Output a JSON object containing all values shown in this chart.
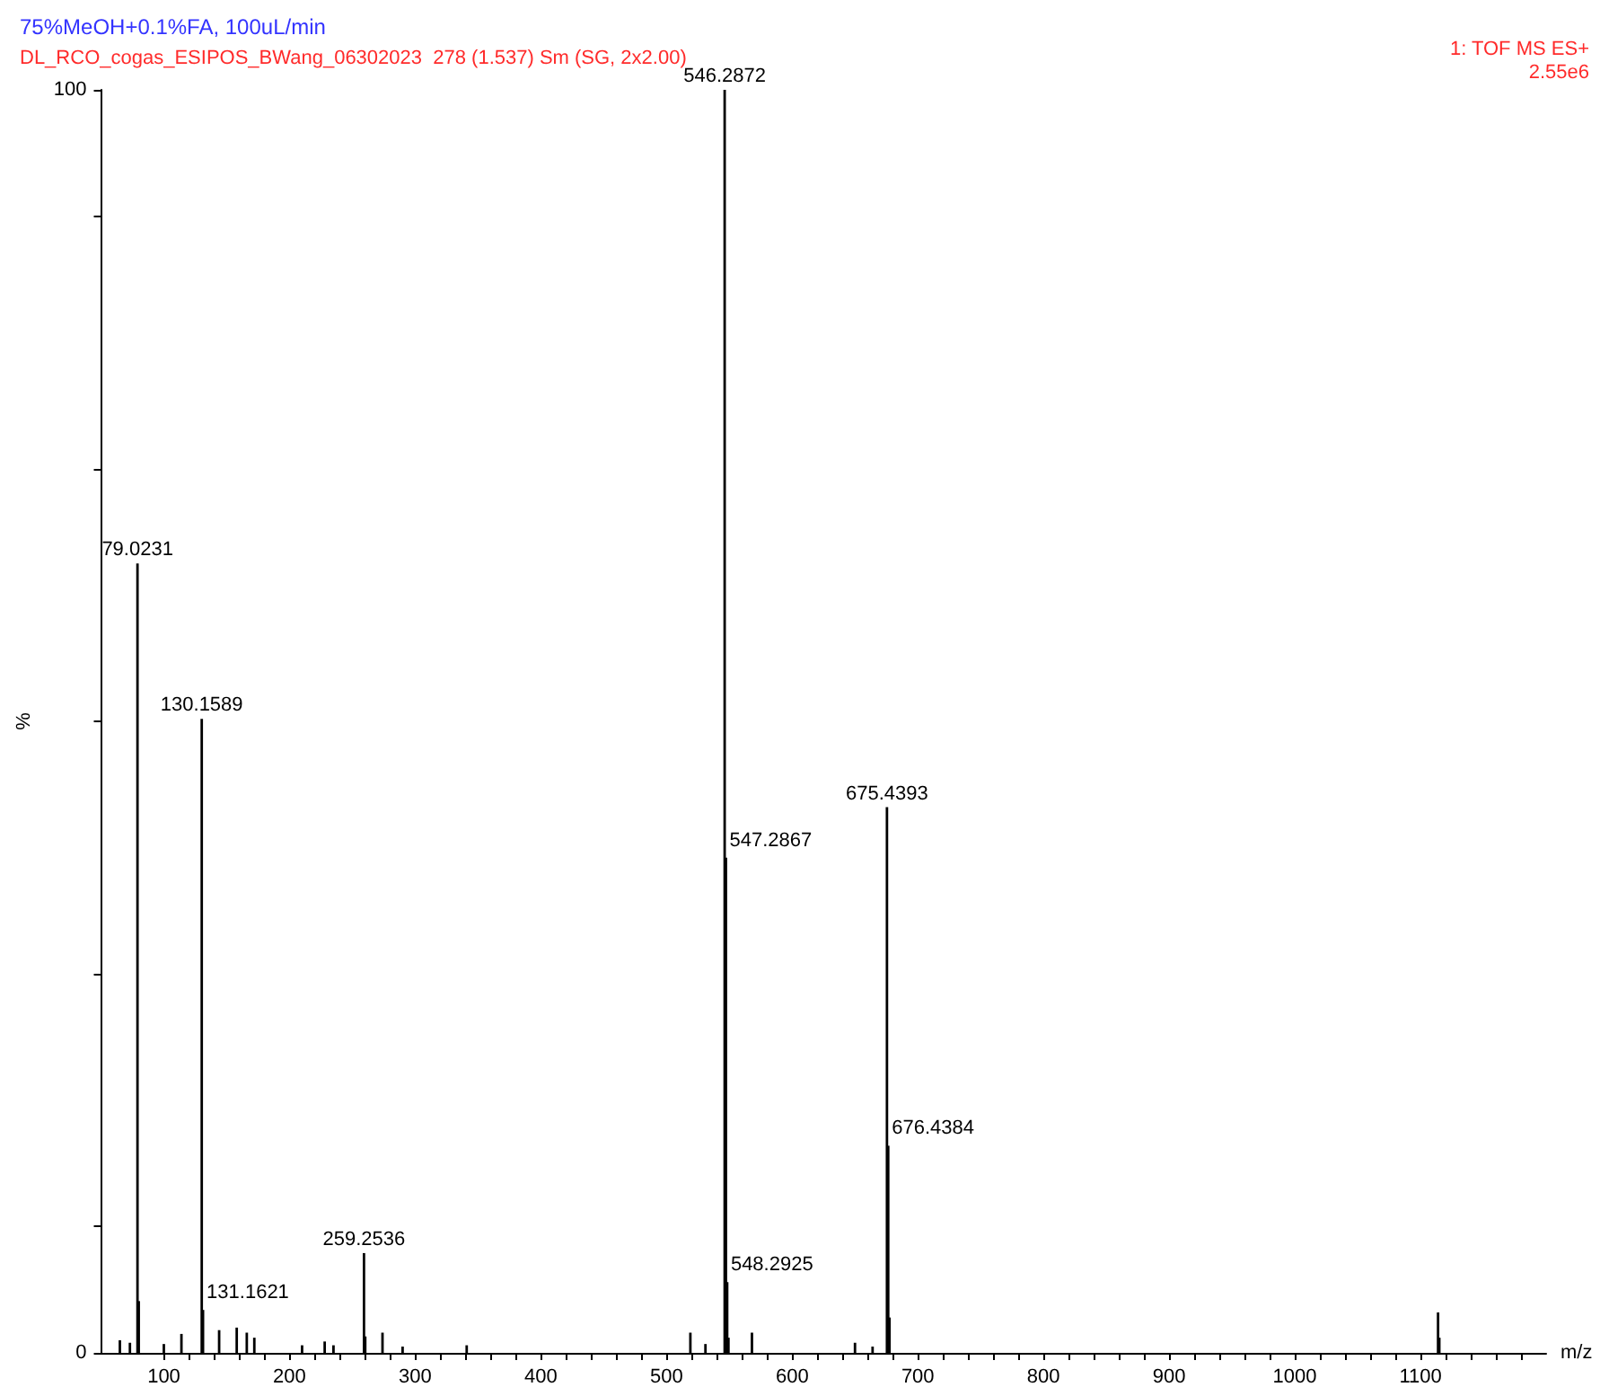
{
  "chart_data": {
    "type": "bar",
    "title": "75%MeOH+0.1%FA, 100uL/min",
    "subtitle": "DL_RCO_cogas_ESIPOS_BWang_06302023  278 (1.537) Sm (SG, 2x2.00)",
    "annotations": [
      "1: TOF MS ES+",
      "2.55e6",
      {
        "text": "79.0231",
        "x": 79.0231,
        "y": 62.5
      },
      {
        "text": "130.1589",
        "x": 130.1589,
        "y": 50.2
      },
      {
        "text": "131.1621",
        "x": 131.1621,
        "y": 3.4
      },
      {
        "text": "259.2536",
        "x": 259.2536,
        "y": 7.9
      },
      {
        "text": "546.2872",
        "x": 546.2872,
        "y": 100
      },
      {
        "text": "547.2867",
        "x": 547.2867,
        "y": 39.2
      },
      {
        "text": "548.2925",
        "x": 548.2925,
        "y": 5.6
      },
      {
        "text": "675.4393",
        "x": 675.4393,
        "y": 43.2
      },
      {
        "text": "676.4384",
        "x": 676.4384,
        "y": 16.4
      }
    ],
    "xlabel": "m/z",
    "ylabel": "%",
    "x": [
      65,
      73,
      79.0231,
      80.03,
      100,
      114,
      130.1589,
      131.1621,
      144,
      158,
      166,
      172,
      210,
      228,
      235,
      259.2536,
      260.26,
      274,
      290,
      341,
      519,
      531,
      546.2872,
      547.2867,
      548.2925,
      549.3,
      568,
      650,
      664,
      675.4393,
      676.4384,
      677.44,
      1113,
      1114,
      1115
    ],
    "series": [
      {
        "color": "#000000",
        "values": [
          1,
          0.8,
          62.5,
          4.1,
          0.7,
          1.5,
          50.2,
          3.4,
          1.8,
          2,
          1.6,
          1.2,
          0.6,
          0.9,
          0.6,
          7.9,
          1.3,
          1.6,
          0.5,
          0.6,
          1.6,
          0.7,
          100,
          39.2,
          5.6,
          1.2,
          1.6,
          0.8,
          0.5,
          43.2,
          16.4,
          2.8,
          null,
          3.2,
          1.2
        ]
      }
    ],
    "xlim": [
      50,
      1200
    ],
    "xticks": [
      100,
      {
        "value": 120,
        "label": null
      },
      {
        "value": 140,
        "label": null
      },
      {
        "value": 160,
        "label": null
      },
      {
        "value": 180,
        "label": null
      },
      200,
      {
        "value": 220,
        "label": null
      },
      {
        "value": 240,
        "label": null
      },
      {
        "value": 260,
        "label": null
      },
      {
        "value": 280,
        "label": null
      },
      300,
      {
        "value": 320,
        "label": null
      },
      {
        "value": 340,
        "label": null
      },
      {
        "value": 360,
        "label": null
      },
      {
        "value": 380,
        "label": null
      },
      400,
      {
        "value": 420,
        "label": null
      },
      {
        "value": 440,
        "label": null
      },
      {
        "value": 460,
        "label": null
      },
      {
        "value": 480,
        "label": null
      },
      500,
      {
        "value": 520,
        "label": null
      },
      {
        "value": 540,
        "label": null
      },
      {
        "value": 560,
        "label": null
      },
      {
        "value": 580,
        "label": null
      },
      600,
      {
        "value": 620,
        "label": null
      },
      {
        "value": 640,
        "label": null
      },
      {
        "value": 660,
        "label": null
      },
      {
        "value": 680,
        "label": null
      },
      700,
      {
        "value": 720,
        "label": null
      },
      {
        "value": 740,
        "label": null
      },
      {
        "value": 760,
        "label": null
      },
      {
        "value": 780,
        "label": null
      },
      800,
      {
        "value": 820,
        "label": null
      },
      {
        "value": 840,
        "label": null
      },
      {
        "value": 860,
        "label": null
      },
      {
        "value": 880,
        "label": null
      },
      900,
      {
        "value": 920,
        "label": null
      },
      {
        "value": 940,
        "label": null
      },
      {
        "value": 960,
        "label": null
      },
      {
        "value": 980,
        "label": null
      },
      1000,
      {
        "value": 1020,
        "label": null
      },
      {
        "value": 1040,
        "label": null
      },
      {
        "value": 1060,
        "label": null
      },
      {
        "value": 1080,
        "label": null
      },
      1100,
      {
        "value": 1120,
        "label": null
      },
      {
        "value": 1140,
        "label": null
      },
      {
        "value": 1160,
        "label": null
      },
      {
        "value": 1180,
        "label": null
      }
    ],
    "ylim": [
      0,
      100
    ],
    "yticks": [
      0,
      {
        "value": 10,
        "label": null
      },
      {
        "value": 30,
        "label": null
      },
      {
        "value": 50,
        "label": null
      },
      {
        "value": 70,
        "label": null
      },
      {
        "value": 90,
        "label": null
      },
      100
    ],
    "grid": false
  }
}
